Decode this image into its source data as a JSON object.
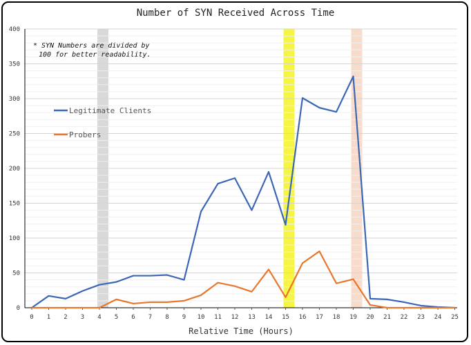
{
  "chart_data": {
    "type": "line",
    "title": "Number of SYN Received Across Time",
    "xlabel": "Relative Time (Hours)",
    "ylabel": "",
    "annotation": [
      "* SYN Numbers are divided by",
      "100 for better readability."
    ],
    "x": [
      0,
      1,
      2,
      3,
      4,
      5,
      6,
      7,
      8,
      9,
      10,
      11,
      12,
      13,
      14,
      15,
      16,
      17,
      18,
      19,
      20,
      21,
      22,
      23,
      24,
      25
    ],
    "xlim": [
      0,
      25
    ],
    "ylim": [
      0,
      400
    ],
    "yticks": [
      0,
      50,
      100,
      150,
      200,
      250,
      300,
      350,
      400
    ],
    "grid": "horizontal",
    "legend_position": "left",
    "highlights": [
      {
        "x": 4,
        "color": "#d9d9d9"
      },
      {
        "x": 15,
        "color": "#f5f542"
      },
      {
        "x": 19,
        "color": "#f8dccb"
      }
    ],
    "series": [
      {
        "name": "Legitimate Clients",
        "color": "#3a66b5",
        "values": [
          0,
          17,
          13,
          24,
          33,
          37,
          46,
          46,
          47,
          40,
          138,
          178,
          186,
          140,
          195,
          119,
          301,
          287,
          281,
          332,
          13,
          12,
          8,
          3,
          1,
          0
        ]
      },
      {
        "name": "Probers",
        "color": "#e8762b",
        "values": [
          0,
          0,
          0,
          0,
          0,
          12,
          6,
          8,
          8,
          10,
          18,
          36,
          31,
          23,
          55,
          15,
          64,
          81,
          35,
          41,
          4,
          0,
          0,
          0,
          0,
          0
        ]
      }
    ]
  }
}
